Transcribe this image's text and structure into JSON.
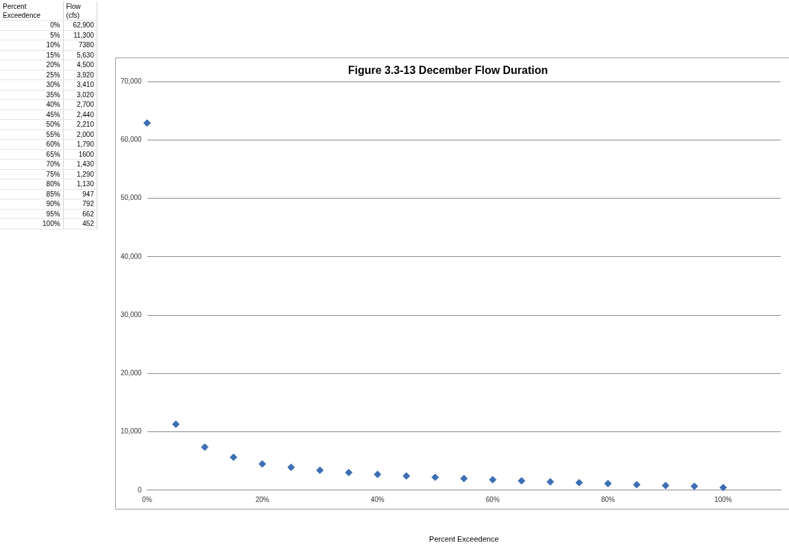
{
  "chart_data": {
    "type": "scatter",
    "title": "Figure 3.3-13 December Flow Duration",
    "xlabel": "Percent Exceedence",
    "annotations": [
      "Percent Exceedence",
      "Flow (cfs)",
      "0%",
      "5%",
      "10%",
      "15%",
      "20%",
      "25%",
      "30%",
      "35%",
      "40%",
      "45%",
      "50%",
      "55%",
      "60%",
      "65%",
      "70%",
      "75%",
      "80%",
      "85%",
      "90%",
      "95%",
      "100%",
      "62,900",
      "11,300",
      "7380",
      "5,630",
      "4,500",
      "3,920",
      "3,410",
      "3,020",
      "2,700",
      "2,440",
      "2,210",
      "2,000",
      "1,790",
      "1600",
      "1,430",
      "1,290",
      "1,130",
      "947",
      "792",
      "662",
      "452"
    ],
    "x": [
      0,
      5,
      10,
      15,
      20,
      25,
      30,
      35,
      40,
      45,
      50,
      55,
      60,
      65,
      70,
      75,
      80,
      85,
      90,
      95,
      100
    ],
    "values": [
      62900,
      11300,
      7380,
      5630,
      4500,
      3920,
      3410,
      3020,
      2700,
      2440,
      2210,
      2000,
      1790,
      1600,
      1430,
      1290,
      1130,
      947,
      792,
      662,
      452
    ],
    "color": "#3d6fb5",
    "marker": "diamond",
    "grid": "y",
    "xlim": [
      0,
      110
    ],
    "xticks": [
      {
        "value": 0,
        "label": "0%"
      },
      {
        "value": 20,
        "label": "20%"
      },
      {
        "value": 40,
        "label": "40%"
      },
      {
        "value": 60,
        "label": "60%"
      },
      {
        "value": 80,
        "label": "80%"
      },
      {
        "value": 100,
        "label": "100%"
      }
    ],
    "ylim": [
      0,
      70000
    ],
    "yticks": [
      0,
      {
        "value": 10000,
        "label": "10,000"
      },
      {
        "value": 20000,
        "label": "20,000"
      },
      {
        "value": 30000,
        "label": "30,000"
      },
      {
        "value": 40000,
        "label": "40,000"
      },
      {
        "value": 50000,
        "label": "50,000"
      },
      {
        "value": 60000,
        "label": "60,000"
      },
      {
        "value": 70000,
        "label": "70,000"
      }
    ]
  }
}
